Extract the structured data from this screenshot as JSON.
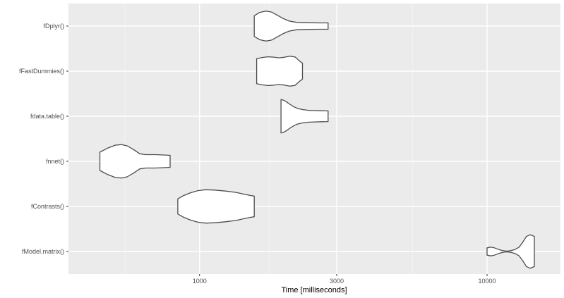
{
  "chart_data": {
    "type": "violin",
    "orientation": "horizontal",
    "x_scale": "log10",
    "xlabel": "Time [milliseconds]",
    "ylabel": "",
    "title": "",
    "xlim": [
      350,
      18000
    ],
    "x_ticks": [
      1000,
      3000,
      10000
    ],
    "x_tick_labels": [
      "1000",
      "3000",
      "10000"
    ],
    "x_minor_ticks": [
      550,
      1750,
      5500
    ],
    "grid": true,
    "categories": [
      "fModel.matrix()",
      "fContrasts()",
      "fnnet()",
      "fdata.table()",
      "fFastDummies()",
      "fDplyr()"
    ],
    "violins": [
      {
        "name": "fModel.matrix()",
        "profile": [
          [
            10000,
            0.22
          ],
          [
            10300,
            0.26
          ],
          [
            10600,
            0.22
          ],
          [
            10900,
            0.14
          ],
          [
            11300,
            0.06
          ],
          [
            11700,
            0.02
          ],
          [
            12100,
            0.05
          ],
          [
            12500,
            0.12
          ],
          [
            12900,
            0.25
          ],
          [
            13300,
            0.55
          ],
          [
            13700,
            0.9
          ],
          [
            14100,
            1.0
          ],
          [
            14400,
            0.95
          ],
          [
            14600,
            0.9
          ]
        ]
      },
      {
        "name": "fContrasts()",
        "profile": [
          [
            840,
            0.45
          ],
          [
            880,
            0.65
          ],
          [
            930,
            0.82
          ],
          [
            990,
            0.95
          ],
          [
            1050,
            1.0
          ],
          [
            1130,
            0.98
          ],
          [
            1230,
            0.92
          ],
          [
            1340,
            0.84
          ],
          [
            1440,
            0.72
          ],
          [
            1510,
            0.65
          ],
          [
            1550,
            0.62
          ]
        ]
      },
      {
        "name": "fnnet()",
        "profile": [
          [
            450,
            0.55
          ],
          [
            480,
            0.8
          ],
          [
            510,
            0.97
          ],
          [
            535,
            1.0
          ],
          [
            560,
            0.93
          ],
          [
            590,
            0.7
          ],
          [
            620,
            0.45
          ],
          [
            650,
            0.4
          ],
          [
            700,
            0.4
          ],
          [
            750,
            0.38
          ],
          [
            790,
            0.36
          ]
        ]
      },
      {
        "name": "fdata.table()",
        "profile": [
          [
            1920,
            1.0
          ],
          [
            1960,
            0.96
          ],
          [
            2000,
            0.88
          ],
          [
            2060,
            0.72
          ],
          [
            2130,
            0.56
          ],
          [
            2200,
            0.46
          ],
          [
            2280,
            0.4
          ],
          [
            2380,
            0.36
          ],
          [
            2500,
            0.34
          ],
          [
            2650,
            0.33
          ],
          [
            2800,
            0.32
          ]
        ]
      },
      {
        "name": "fFastDummies()",
        "profile": [
          [
            1580,
            0.75
          ],
          [
            1650,
            0.82
          ],
          [
            1730,
            0.86
          ],
          [
            1810,
            0.84
          ],
          [
            1890,
            0.8
          ],
          [
            1970,
            0.83
          ],
          [
            2060,
            0.9
          ],
          [
            2150,
            0.85
          ],
          [
            2230,
            0.6
          ],
          [
            2280,
            0.48
          ]
        ]
      },
      {
        "name": "fDplyr()",
        "profile": [
          [
            1550,
            0.62
          ],
          [
            1620,
            0.82
          ],
          [
            1700,
            0.9
          ],
          [
            1780,
            0.84
          ],
          [
            1860,
            0.66
          ],
          [
            1950,
            0.46
          ],
          [
            2050,
            0.3
          ],
          [
            2180,
            0.22
          ],
          [
            2400,
            0.2
          ],
          [
            2620,
            0.19
          ],
          [
            2800,
            0.19
          ]
        ]
      }
    ]
  }
}
